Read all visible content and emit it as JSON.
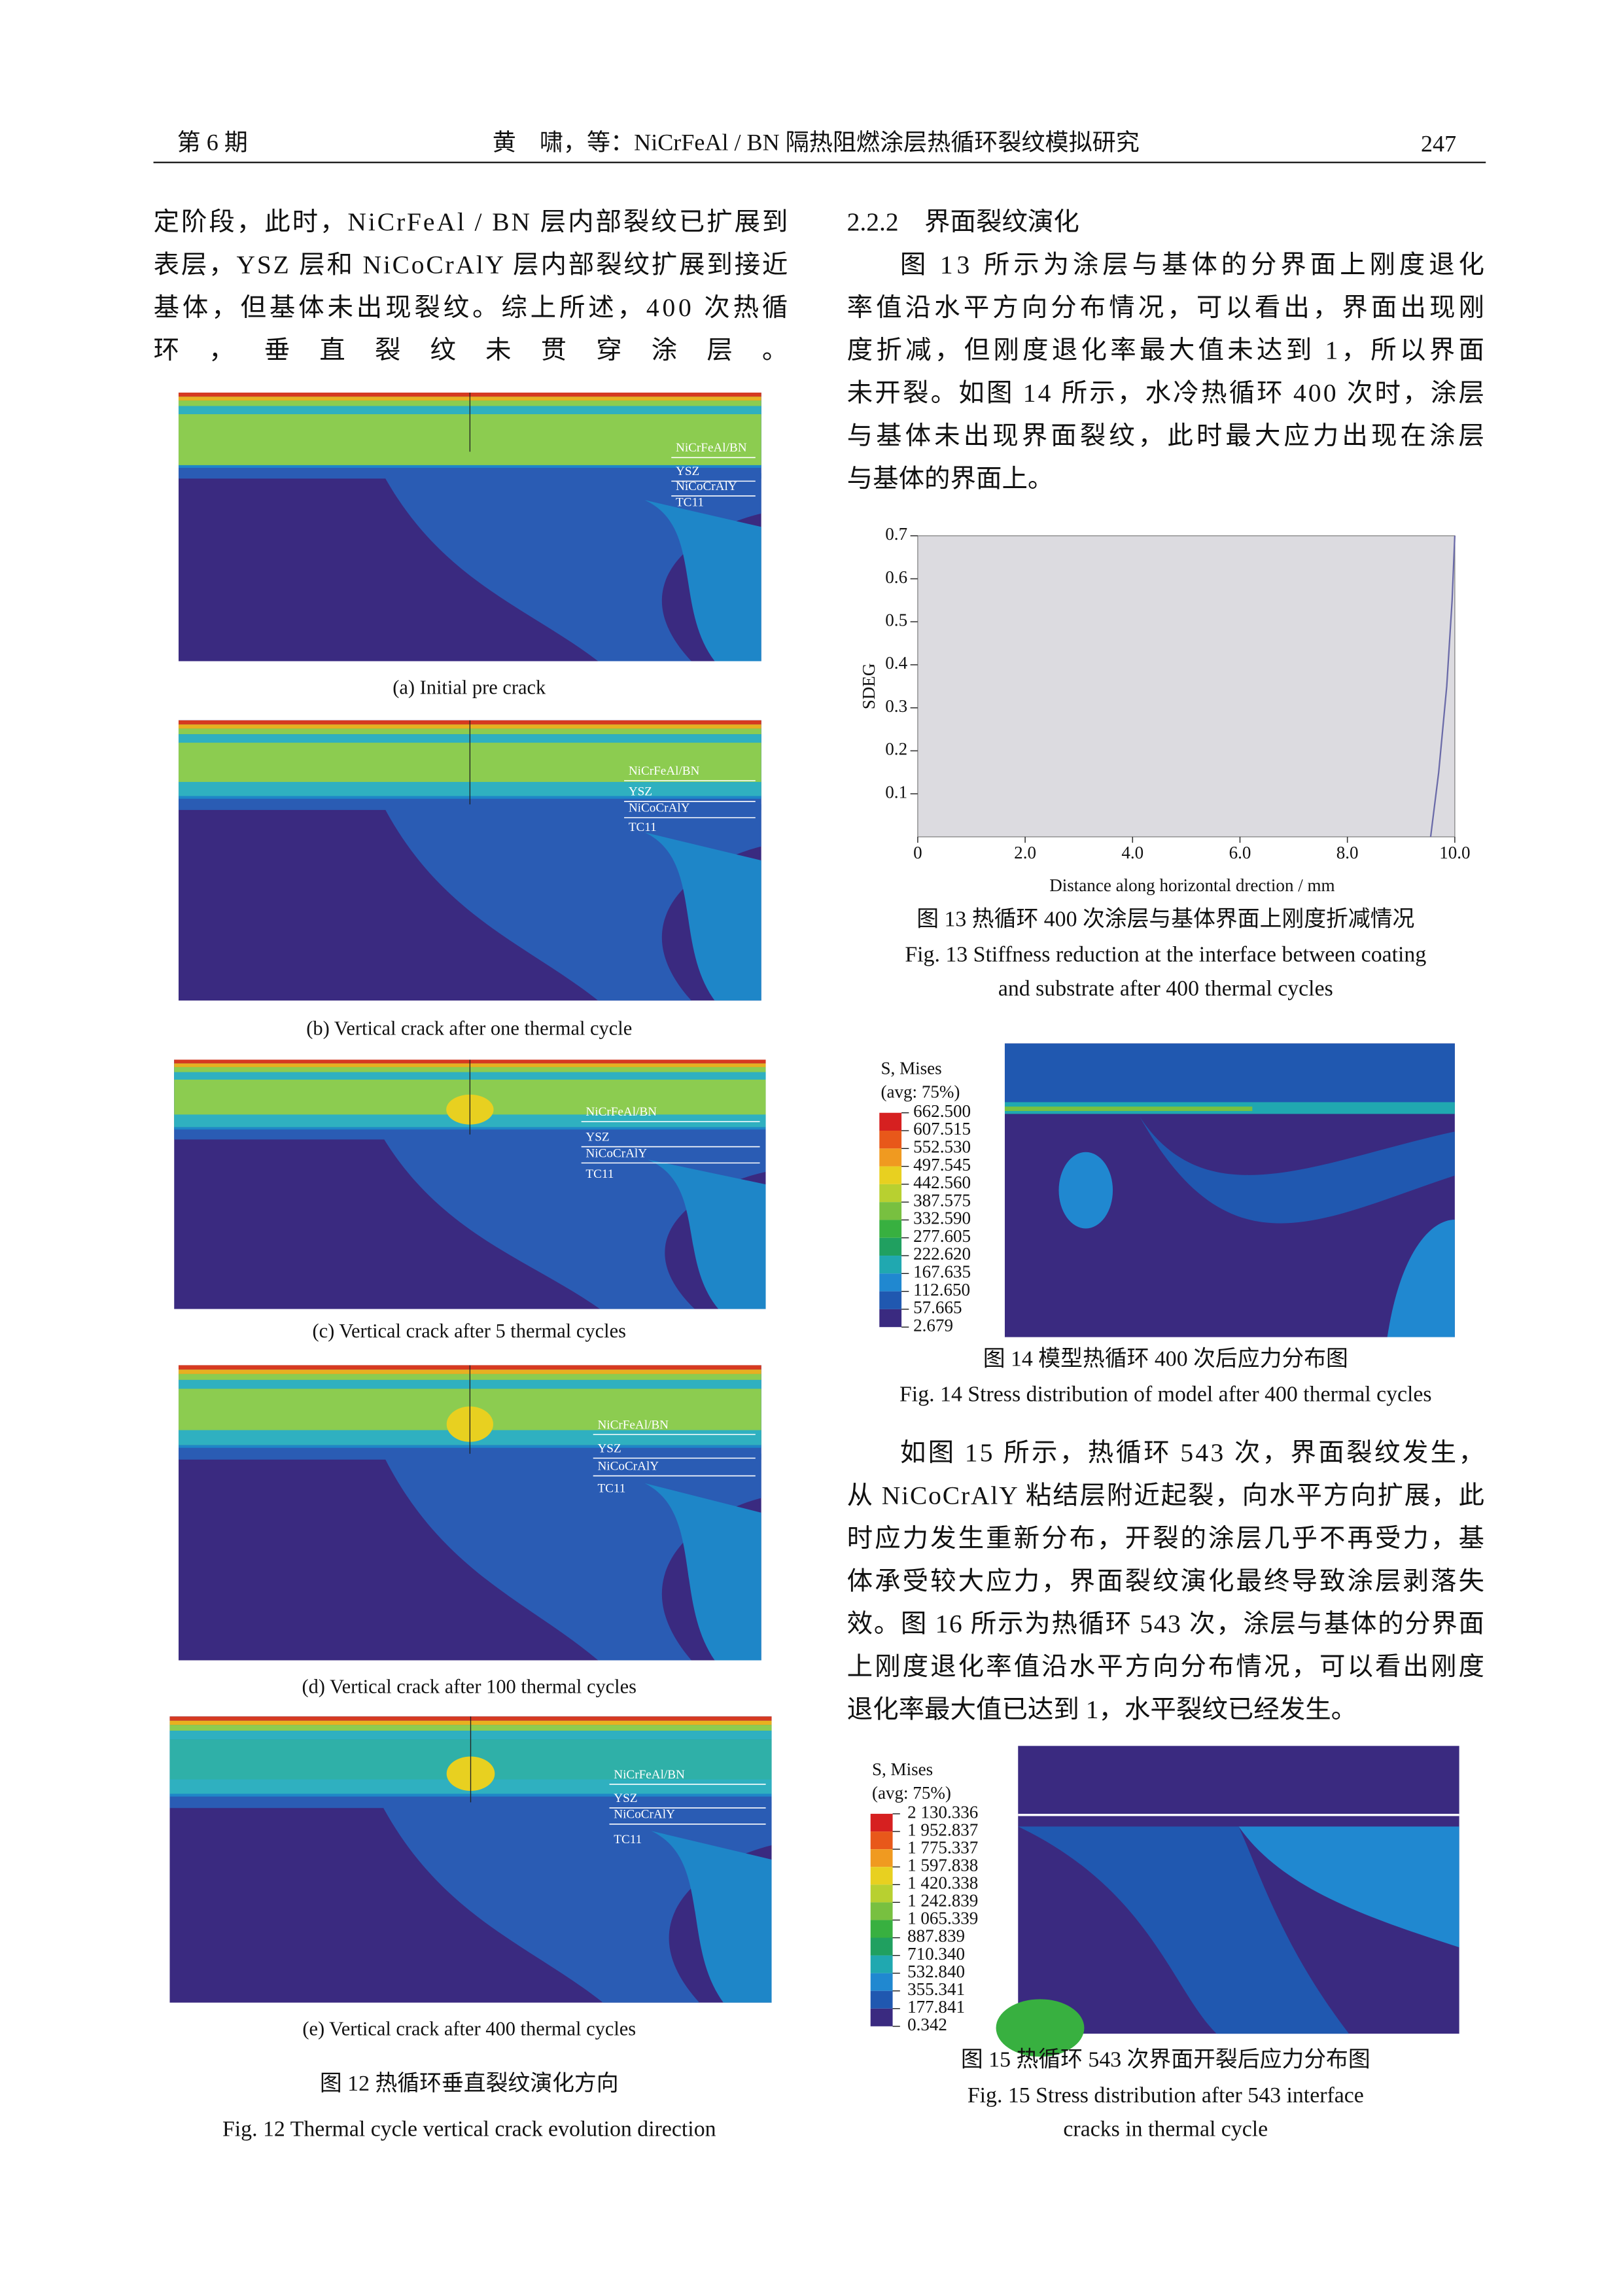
{
  "header": {
    "issue": "第 6 期",
    "title": "黄　啸，等：NiCrFeAl / BN 隔热阻燃涂层热循环裂纹模拟研究",
    "page": "247"
  },
  "left_text": [
    "定阶段，此时，NiCrFeAl / BN 层内部裂纹已扩展到",
    "表层，YSZ 层和 NiCoCrAlY 层内部裂纹扩展到接近",
    "基体，但基体未出现裂纹。综上所述，400 次热循",
    "环，垂直裂纹未贯穿涂层。"
  ],
  "fig12": {
    "layer_labels": [
      "NiCrFeAl/BN",
      "YSZ",
      "NiCoCrAlY",
      "TC11"
    ],
    "panels": [
      "(a) Initial pre crack",
      "(b) Vertical crack after one thermal cycle",
      "(c) Vertical crack after 5 thermal cycles",
      "(d) Vertical crack after 100 thermal cycles",
      "(e) Vertical crack after 400 thermal cycles"
    ],
    "caption_cn": "图 12  热循环垂直裂纹演化方向",
    "caption_en": "Fig. 12    Thermal cycle vertical crack evolution direction"
  },
  "section": {
    "heading": "2.2.2　界面裂纹演化",
    "para1": [
      "图 13 所示为涂层与基体的分界面上刚度退化",
      "率值沿水平方向分布情况，可以看出，界面出现刚",
      "度折减，但刚度退化率最大值未达到 1，所以界面",
      "未开裂。如图 14 所示，水冷热循环 400 次时，涂层",
      "与基体未出现界面裂纹，此时最大应力出现在涂层",
      "与基体的界面上。"
    ],
    "para2": [
      "如图 15 所示，热循环 543 次，界面裂纹发生，",
      "从 NiCoCrAlY 粘结层附近起裂，向水平方向扩展，此",
      "时应力发生重新分布，开裂的涂层几乎不再受力，基",
      "体承受较大应力，界面裂纹演化最终导致涂层剥落失",
      "效。图 16 所示为热循环 543 次，涂层与基体的分界面",
      "上刚度退化率值沿水平方向分布情况，可以看出刚度",
      "退化率最大值已达到 1，水平裂纹已经发生。"
    ]
  },
  "fig13": {
    "chart_data": {
      "type": "line",
      "ylabel": "SDEG",
      "xlabel": "Distance along horizontal drection / mm",
      "xlim": [
        0,
        10
      ],
      "ylim": [
        0,
        0.7
      ],
      "xticks": [
        0,
        {
          "value": 2,
          "label": "2.0"
        },
        {
          "value": 4,
          "label": "4.0"
        },
        {
          "value": 6,
          "label": "6.0"
        },
        {
          "value": 8,
          "label": "8.0"
        },
        {
          "value": 10,
          "label": "10.0"
        }
      ],
      "yticks": [
        0.1,
        0.2,
        0.3,
        0.4,
        0.5,
        0.6,
        0.7
      ],
      "x": [
        9.55,
        9.7,
        9.85,
        9.95,
        10
      ],
      "values": [
        0,
        0.15,
        0.35,
        0.55,
        0.7
      ],
      "color": "#6a6aa8"
    },
    "caption_cn": "图 13    热循环 400 次涂层与基体界面上刚度折减情况",
    "caption_en": [
      "Fig. 13    Stiffness reduction at the interface between coating",
      "and substrate after 400 thermal cycles"
    ]
  },
  "fig14": {
    "legend_title": [
      "S, Mises",
      "(avg: 75%)"
    ],
    "legend_values": [
      "662.500",
      "607.515",
      "552.530",
      "497.545",
      "442.560",
      "387.575",
      "332.590",
      "277.605",
      "222.620",
      "167.635",
      "112.650",
      "57.665",
      "2.679"
    ],
    "caption_cn": "图 14    模型热循环 400 次后应力分布图",
    "caption_en": "Fig. 14    Stress distribution of model after 400 thermal cycles"
  },
  "fig15": {
    "legend_title": [
      "S, Mises",
      "(avg: 75%)"
    ],
    "legend_values": [
      "2 130.336",
      "1 952.837",
      "1 775.337",
      "1 597.838",
      "1 420.338",
      "1 242.839",
      "1 065.339",
      "887.839",
      "710.340",
      "532.840",
      "355.341",
      "177.841",
      "0.342"
    ],
    "caption_cn": "图 15    热循环 543 次界面开裂后应力分布图",
    "caption_en": [
      "Fig. 15    Stress distribution after 543 interface",
      "cracks in thermal cycle"
    ]
  }
}
